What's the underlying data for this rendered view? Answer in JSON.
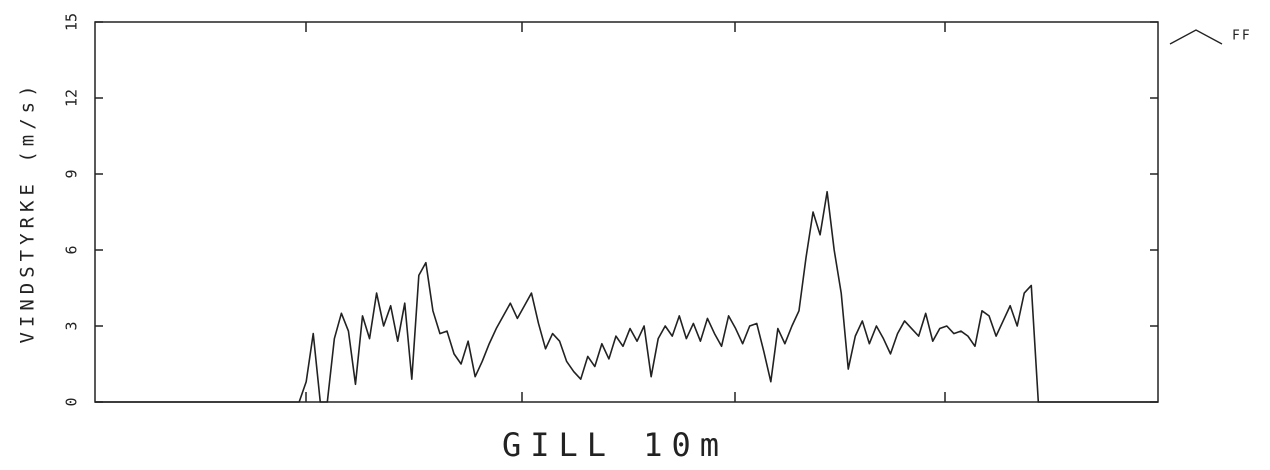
{
  "chart_data": {
    "type": "line",
    "title": "GILL 10m",
    "y_label": "VINDSTYRKE (m/s)",
    "ylim": [
      0,
      15
    ],
    "yticks": [
      0,
      3,
      6,
      9,
      12,
      15
    ],
    "legend": "top-right",
    "series": [
      {
        "name": "FF",
        "color": "#222222",
        "values": [
          0,
          0,
          0,
          0,
          0,
          0,
          0,
          0,
          0,
          0,
          0,
          0,
          0,
          0,
          0,
          0,
          0,
          0,
          0,
          0,
          0,
          0,
          0,
          0,
          0,
          0,
          0,
          0,
          0,
          0,
          0.8,
          2.7,
          0,
          0,
          2.5,
          3.5,
          2.8,
          0.7,
          3.4,
          2.5,
          4.3,
          3.0,
          3.8,
          2.4,
          3.9,
          0.9,
          5.0,
          5.5,
          3.6,
          2.7,
          2.8,
          1.9,
          1.5,
          2.4,
          1.0,
          1.6,
          2.3,
          2.9,
          3.4,
          3.9,
          3.3,
          3.8,
          4.3,
          3.1,
          2.1,
          2.7,
          2.4,
          1.6,
          1.2,
          0.9,
          1.8,
          1.4,
          2.3,
          1.7,
          2.6,
          2.2,
          2.9,
          2.4,
          3.0,
          1.0,
          2.5,
          3.0,
          2.6,
          3.4,
          2.5,
          3.1,
          2.4,
          3.3,
          2.7,
          2.2,
          3.4,
          2.9,
          2.3,
          3.0,
          3.1,
          2.0,
          0.8,
          2.9,
          2.3,
          3.0,
          3.6,
          5.7,
          7.5,
          6.6,
          8.3,
          6.0,
          4.3,
          1.3,
          2.6,
          3.2,
          2.3,
          3.0,
          2.5,
          1.9,
          2.7,
          3.2,
          2.9,
          2.6,
          3.5,
          2.4,
          2.9,
          3.0,
          2.7,
          2.8,
          2.6,
          2.2,
          3.6,
          3.4,
          2.6,
          3.2,
          3.8,
          3.0,
          4.3,
          4.6,
          0,
          0,
          0,
          0,
          0,
          0,
          0,
          0,
          0,
          0,
          0,
          0,
          0,
          0,
          0,
          0,
          0,
          0
        ]
      }
    ]
  }
}
